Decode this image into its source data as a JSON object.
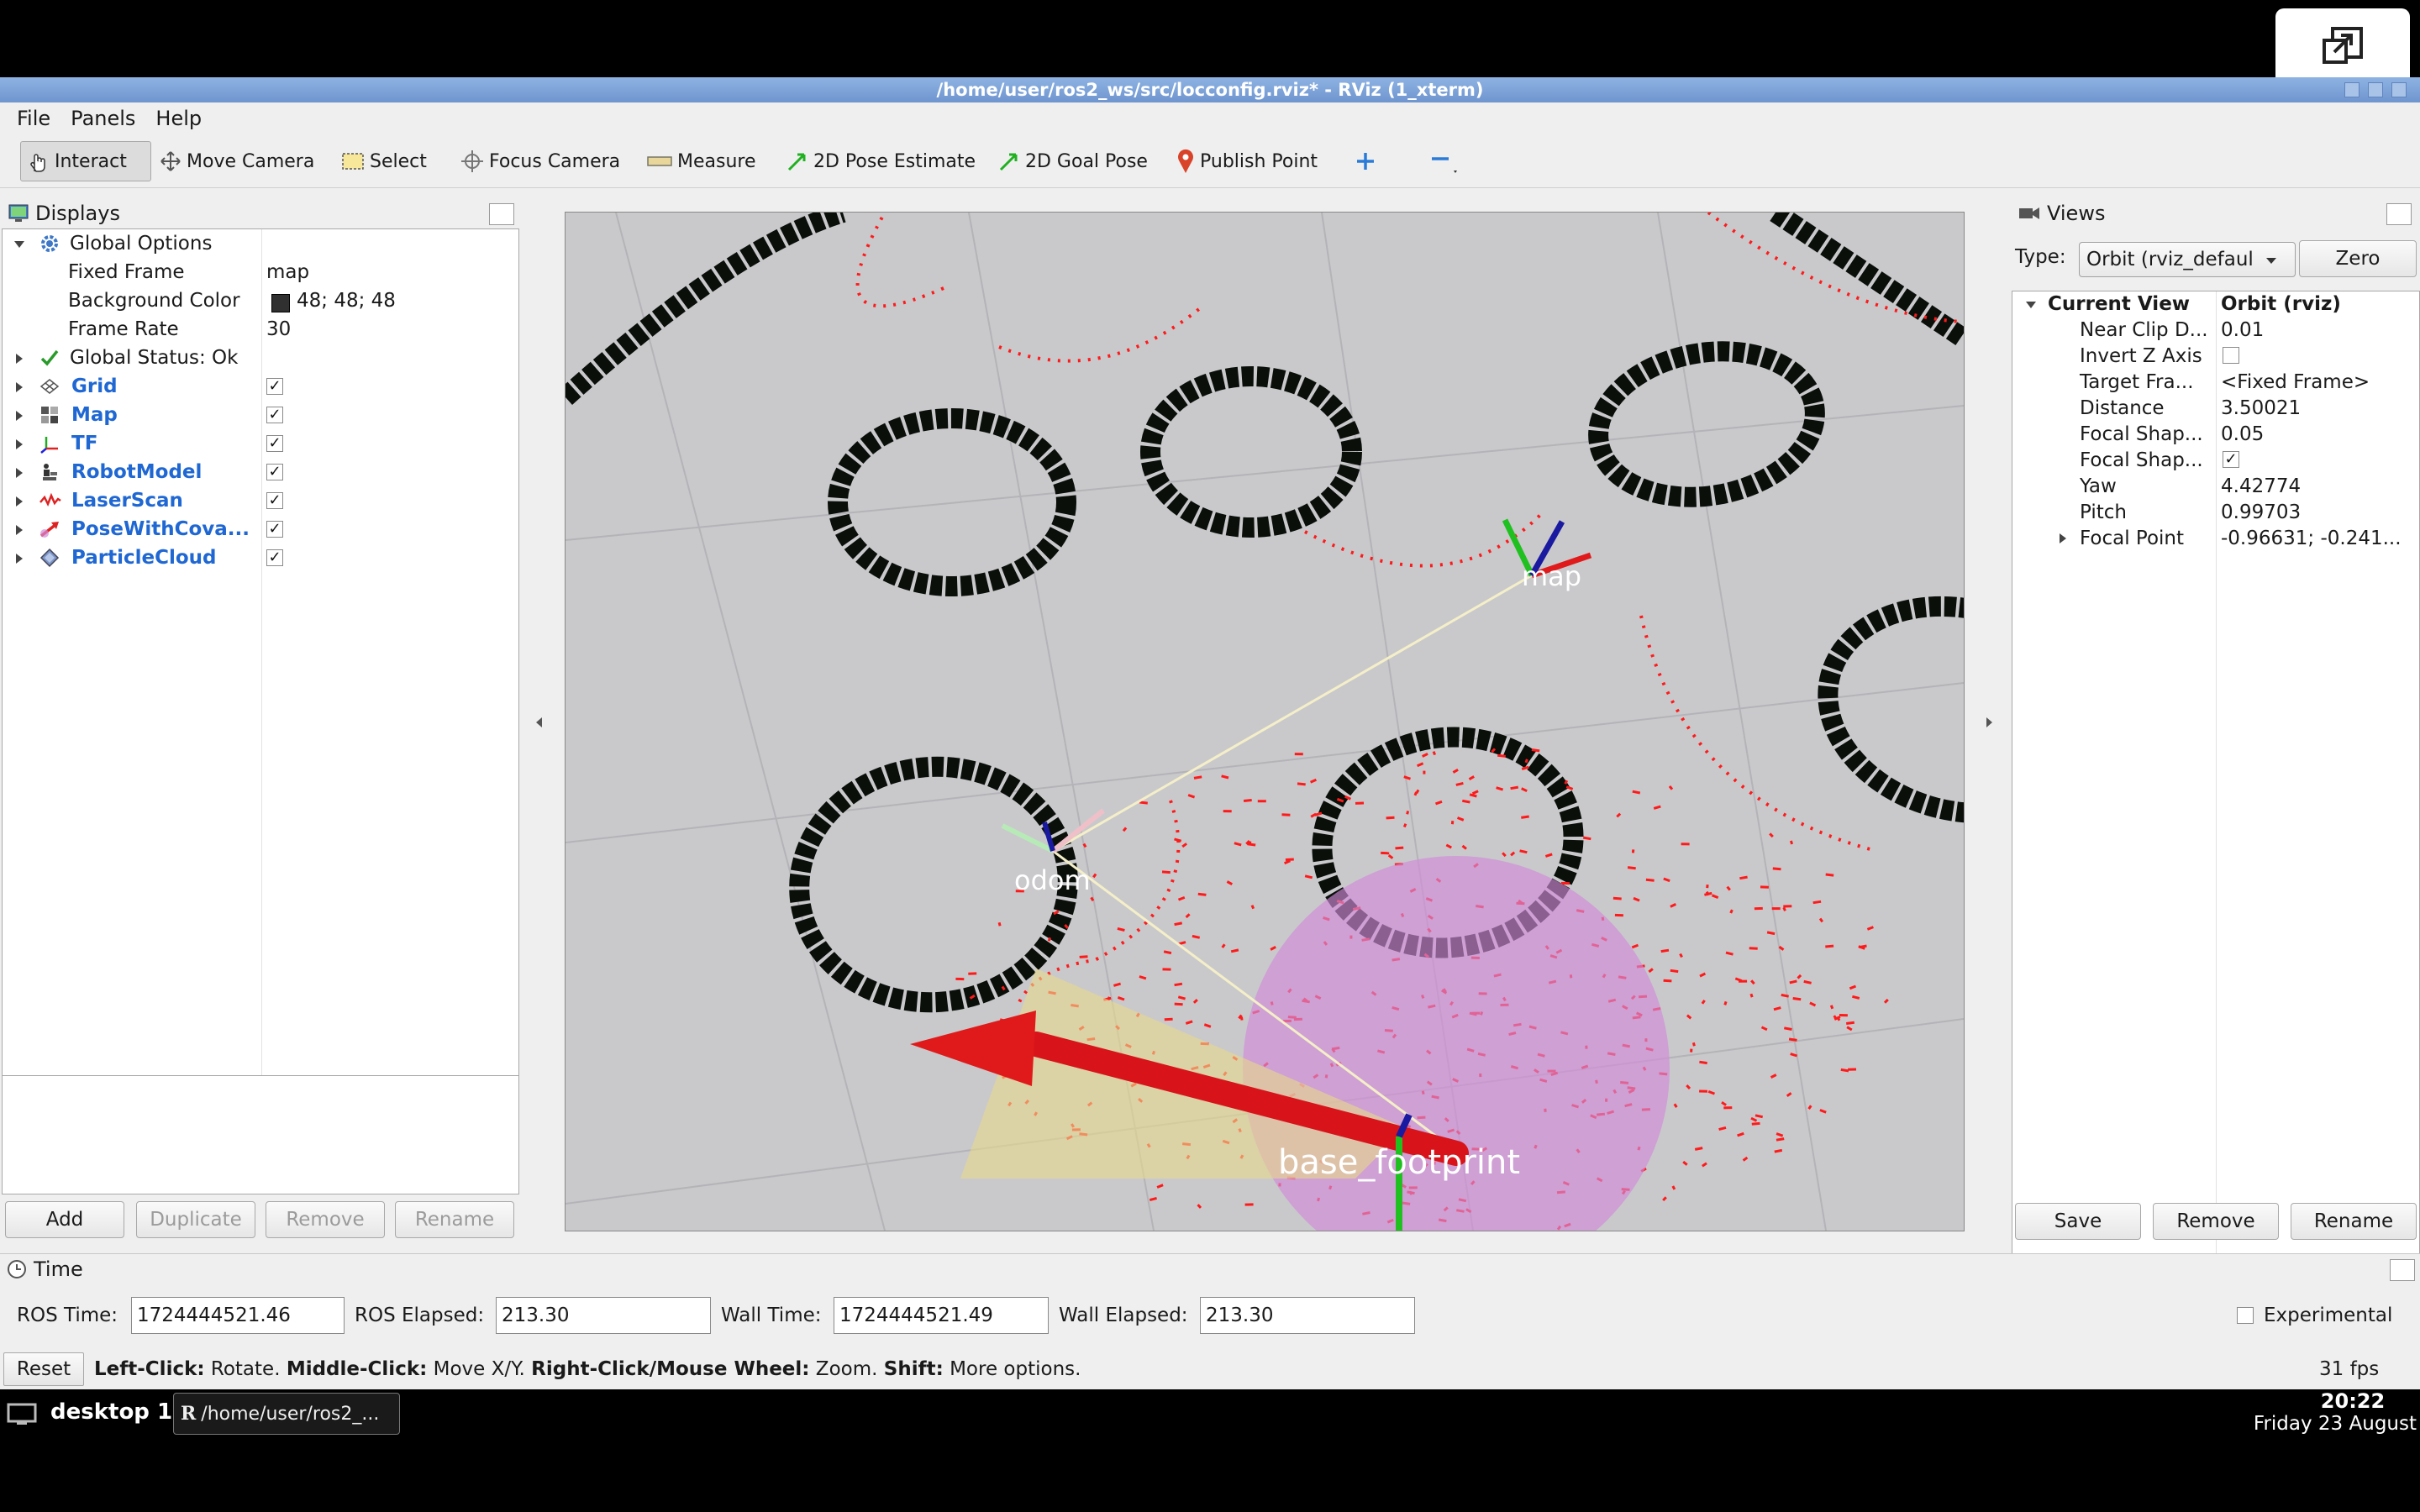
{
  "window": {
    "title": "/home/user/ros2_ws/src/locconfig.rviz* - RViz (1_xterm)"
  },
  "menu": [
    "File",
    "Panels",
    "Help"
  ],
  "toolbar": {
    "interact": "Interact",
    "move_camera": "Move Camera",
    "select": "Select",
    "focus_camera": "Focus Camera",
    "measure": "Measure",
    "pose_estimate": "2D Pose Estimate",
    "goal_pose": "2D Goal Pose",
    "publish_point": "Publish Point"
  },
  "displays": {
    "title": "Displays",
    "global_options": "Global Options",
    "fixed_frame_label": "Fixed Frame",
    "fixed_frame_value": "map",
    "bg_color_label": "Background Color",
    "bg_color_value": "48; 48; 48",
    "bg_color_swatch": "#303030",
    "frame_rate_label": "Frame Rate",
    "frame_rate_value": "30",
    "global_status": "Global Status: Ok",
    "items": [
      {
        "label": "Grid",
        "checked": true
      },
      {
        "label": "Map",
        "checked": true
      },
      {
        "label": "TF",
        "checked": true
      },
      {
        "label": "RobotModel",
        "checked": true
      },
      {
        "label": "LaserScan",
        "checked": true
      },
      {
        "label": "PoseWithCova...",
        "checked": true
      },
      {
        "label": "ParticleCloud",
        "checked": true
      }
    ],
    "buttons": {
      "add": "Add",
      "duplicate": "Duplicate",
      "remove": "Remove",
      "rename": "Rename"
    }
  },
  "viewport": {
    "frames": {
      "map": "map",
      "odom": "odom",
      "base": "base_footprint"
    },
    "background": "#c9c9cc",
    "laser_color": "#ff1a1a",
    "covariance_color": "#d18ad8"
  },
  "views": {
    "title": "Views",
    "type_label": "Type:",
    "type_value": "Orbit (rviz_defaul",
    "zero": "Zero",
    "current_view": "Current View",
    "current_view_value": "Orbit (rviz)",
    "props": [
      {
        "label": "Near Clip D...",
        "value": "0.01"
      },
      {
        "label": "Invert Z Axis",
        "value": ""
      },
      {
        "label": "Target Fra...",
        "value": "<Fixed Frame>"
      },
      {
        "label": "Distance",
        "value": "3.50021"
      },
      {
        "label": "Focal Shap...",
        "value": "0.05"
      },
      {
        "label": "Focal Shap...",
        "value": ""
      },
      {
        "label": "Yaw",
        "value": "4.42774"
      },
      {
        "label": "Pitch",
        "value": "0.99703"
      },
      {
        "label": "Focal Point",
        "value": "-0.96631; -0.241..."
      }
    ],
    "invert_z_checked": false,
    "focal_shape_fixed_checked": true,
    "buttons": {
      "save": "Save",
      "remove": "Remove",
      "rename": "Rename"
    }
  },
  "time": {
    "title": "Time",
    "ros_time_label": "ROS Time:",
    "ros_time": "1724444521.46",
    "ros_elapsed_label": "ROS Elapsed:",
    "ros_elapsed": "213.30",
    "wall_time_label": "Wall Time:",
    "wall_time": "1724444521.49",
    "wall_elapsed_label": "Wall Elapsed:",
    "wall_elapsed": "213.30",
    "experimental": "Experimental"
  },
  "status": {
    "reset": "Reset",
    "hint_1b": "Left-Click:",
    "hint_1": " Rotate. ",
    "hint_2b": "Middle-Click:",
    "hint_2": " Move X/Y. ",
    "hint_3b": "Right-Click/Mouse Wheel:",
    "hint_3": " Zoom. ",
    "hint_4b": "Shift:",
    "hint_4": " More options.",
    "fps": "31 fps"
  },
  "taskbar": {
    "desktop": "desktop 1",
    "task": "/home/user/ros2_...",
    "time": "20:22",
    "date": "Friday 23 August"
  }
}
